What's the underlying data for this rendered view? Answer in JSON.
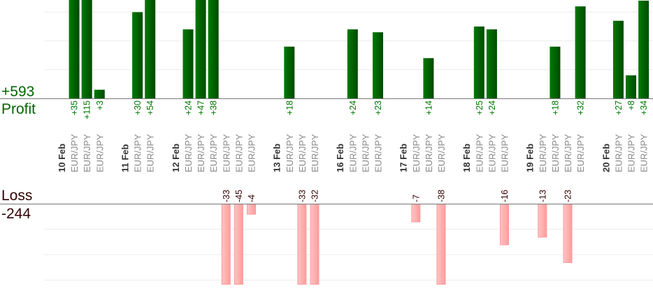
{
  "summary": {
    "profit_total": "+593",
    "profit_label": "Profit",
    "loss_label": "Loss",
    "loss_total": "-244"
  },
  "colors": {
    "profit": "#006600",
    "loss": "#330000",
    "profit_bar": "#006400",
    "loss_bar": "#ffaaaa"
  },
  "chart_data": {
    "type": "bar",
    "title": "",
    "profit_grid_step": 10,
    "loss_grid_step": 10,
    "columns": [
      {
        "date": "10 Feb"
      },
      {
        "symbol": "EUR/JPY",
        "value": 35
      },
      {
        "symbol": "EUR/JPY",
        "value": 115
      },
      {
        "symbol": "EUR/JPY",
        "value": 3
      },
      {},
      {
        "date": "11 Feb"
      },
      {
        "symbol": "EUR/JPY",
        "value": 30
      },
      {
        "symbol": "EUR/JPY",
        "value": 54
      },
      {},
      {
        "date": "12 Feb"
      },
      {
        "symbol": "EUR/JPY",
        "value": 24
      },
      {
        "symbol": "EUR/JPY",
        "value": 47
      },
      {
        "symbol": "EUR/JPY",
        "value": 38
      },
      {
        "symbol": "EUR/JPY",
        "value": -33
      },
      {
        "symbol": "EUR/JPY",
        "value": -45
      },
      {
        "symbol": "EUR/JPY",
        "value": -4
      },
      {},
      {
        "date": "13 Feb"
      },
      {
        "symbol": "EUR/JPY",
        "value": 18
      },
      {
        "symbol": "EUR/JPY",
        "value": -33
      },
      {
        "symbol": "EUR/JPY",
        "value": -32
      },
      {},
      {
        "date": "16 Feb"
      },
      {
        "symbol": "EUR/JPY",
        "value": 24
      },
      {
        "symbol": "EUR/JPY",
        "value": null
      },
      {
        "symbol": "EUR/JPY",
        "value": 23
      },
      {},
      {
        "date": "17 Feb"
      },
      {
        "symbol": "EUR/JPY",
        "value": -7
      },
      {
        "symbol": "EUR/JPY",
        "value": 14
      },
      {
        "symbol": "EUR/JPY",
        "value": -38
      },
      {},
      {
        "date": "18 Feb"
      },
      {
        "symbol": "EUR/JPY",
        "value": 25
      },
      {
        "symbol": "EUR/JPY",
        "value": 24
      },
      {
        "symbol": "EUR/JPY",
        "value": -16
      },
      {},
      {
        "date": "19 Feb"
      },
      {
        "symbol": "EUR/JPY",
        "value": -13
      },
      {
        "symbol": "EUR/JPY",
        "value": 18
      },
      {
        "symbol": "EUR/JPY",
        "value": -23
      },
      {
        "symbol": "EUR/JPY",
        "value": 32
      },
      {},
      {
        "date": "20 Feb"
      },
      {
        "symbol": "EUR/JPY",
        "value": 27
      },
      {
        "symbol": "EUR/JPY",
        "value": 8
      },
      {
        "symbol": "EUR/JPY",
        "value": 34
      }
    ]
  }
}
